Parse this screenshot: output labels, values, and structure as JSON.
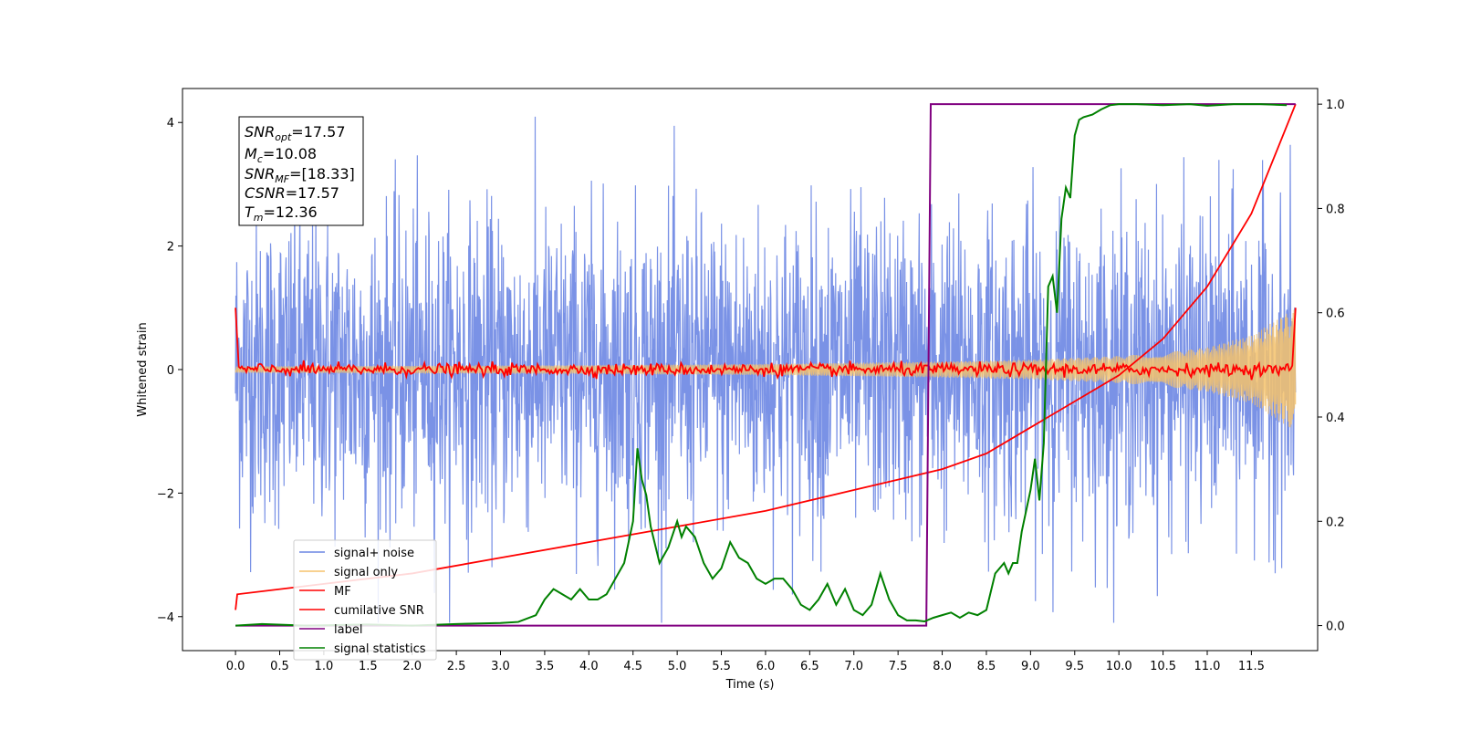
{
  "chart_data": {
    "type": "line",
    "xlabel": "Time (s)",
    "ylabel": "Whitened strain",
    "xlim": [
      -0.6,
      12.25
    ],
    "ylim_left": [
      -4.55,
      4.55
    ],
    "ylim_right": [
      -0.048,
      1.03
    ],
    "x_ticks": [
      "0.0",
      "0.5",
      "1.0",
      "1.5",
      "2.0",
      "2.5",
      "3.0",
      "3.5",
      "4.0",
      "4.5",
      "5.0",
      "5.5",
      "6.0",
      "6.5",
      "7.0",
      "7.5",
      "8.0",
      "8.5",
      "9.0",
      "9.5",
      "10.0",
      "10.5",
      "11.0",
      "11.5"
    ],
    "y_ticks_left": [
      "4",
      "2",
      "0",
      "−2",
      "−4"
    ],
    "y_ticks_right": [
      "1.0",
      "0.8",
      "0.6",
      "0.4",
      "0.2",
      "0.0"
    ],
    "grid": false,
    "legend_position": "lower-left",
    "legend": [
      "signal+ noise",
      "signal only",
      "MF",
      "cumilative SNR",
      "label",
      "signal statistics"
    ],
    "annotation": {
      "snr_opt": "=17.57",
      "mc": "=10.08",
      "snr_mf": "=[18.33]",
      "csnr": "=17.57",
      "tm": "=12.36"
    },
    "series": [
      {
        "name": "signal+ noise",
        "axis": "left",
        "color": "#6b86e3",
        "description_values": {
          "x_range": [
            0.0,
            12.0
          ],
          "envelope_min": -4.1,
          "envelope_max": 4.1,
          "mean": 0.0
        }
      },
      {
        "name": "signal only",
        "axis": "left",
        "color": "#f5c26b",
        "description_values": {
          "x": [
            0,
            2,
            4,
            6,
            8,
            9,
            10,
            10.5,
            11,
            11.5,
            12
          ],
          "amplitude": [
            0.05,
            0.06,
            0.07,
            0.09,
            0.13,
            0.16,
            0.22,
            0.27,
            0.36,
            0.55,
            1.0
          ]
        }
      },
      {
        "name": "MF",
        "axis": "left",
        "color": "#ff0000",
        "description_values": {
          "x_range": [
            0.0,
            12.0
          ],
          "baseline": 0.0,
          "start_value": 1.0,
          "end_value": 1.0,
          "noise": 0.05
        }
      },
      {
        "name": "cumilative SNR",
        "axis": "right",
        "color": "#ff0000",
        "x": [
          0.0,
          0.02,
          1,
          2,
          3,
          4,
          5,
          6,
          7,
          7.5,
          8,
          8.5,
          9,
          9.5,
          10,
          10.5,
          11,
          11.5,
          12.0
        ],
        "values": [
          0.03,
          0.06,
          0.08,
          0.1,
          0.13,
          0.16,
          0.19,
          0.22,
          0.26,
          0.28,
          0.3,
          0.33,
          0.38,
          0.43,
          0.48,
          0.55,
          0.65,
          0.79,
          1.0
        ]
      },
      {
        "name": "label",
        "axis": "right",
        "color": "#800080",
        "x": [
          0.0,
          7.82,
          7.87,
          12.0
        ],
        "values": [
          0.0,
          0.0,
          1.0,
          1.0
        ]
      },
      {
        "name": "signal statistics",
        "axis": "right",
        "color": "#008000",
        "x": [
          0.0,
          0.3,
          0.8,
          1.5,
          2.0,
          2.5,
          3.0,
          3.2,
          3.4,
          3.5,
          3.6,
          3.7,
          3.8,
          3.9,
          4.0,
          4.1,
          4.2,
          4.3,
          4.4,
          4.5,
          4.55,
          4.6,
          4.65,
          4.7,
          4.8,
          4.9,
          5.0,
          5.05,
          5.1,
          5.2,
          5.3,
          5.4,
          5.5,
          5.6,
          5.7,
          5.8,
          5.9,
          6.0,
          6.1,
          6.2,
          6.3,
          6.4,
          6.5,
          6.6,
          6.7,
          6.8,
          6.9,
          7.0,
          7.1,
          7.2,
          7.3,
          7.4,
          7.5,
          7.6,
          7.7,
          7.8,
          7.9,
          8.0,
          8.1,
          8.2,
          8.3,
          8.4,
          8.5,
          8.6,
          8.7,
          8.75,
          8.8,
          8.85,
          8.9,
          9.0,
          9.05,
          9.1,
          9.15,
          9.2,
          9.25,
          9.3,
          9.35,
          9.4,
          9.45,
          9.5,
          9.55,
          9.6,
          9.7,
          9.8,
          9.9,
          10.0,
          10.2,
          10.5,
          10.8,
          11.0,
          11.3,
          11.6,
          11.9
        ],
        "values": [
          0.0,
          0.003,
          0.0,
          0.002,
          0.0,
          0.003,
          0.005,
          0.007,
          0.02,
          0.05,
          0.07,
          0.06,
          0.05,
          0.07,
          0.05,
          0.05,
          0.06,
          0.09,
          0.12,
          0.2,
          0.34,
          0.28,
          0.25,
          0.19,
          0.12,
          0.15,
          0.2,
          0.17,
          0.19,
          0.17,
          0.12,
          0.09,
          0.11,
          0.16,
          0.13,
          0.12,
          0.09,
          0.08,
          0.09,
          0.09,
          0.07,
          0.04,
          0.03,
          0.05,
          0.08,
          0.04,
          0.07,
          0.03,
          0.02,
          0.04,
          0.1,
          0.05,
          0.02,
          0.01,
          0.01,
          0.008,
          0.015,
          0.02,
          0.025,
          0.015,
          0.025,
          0.02,
          0.03,
          0.1,
          0.12,
          0.1,
          0.12,
          0.12,
          0.18,
          0.26,
          0.32,
          0.24,
          0.35,
          0.65,
          0.67,
          0.6,
          0.78,
          0.84,
          0.82,
          0.94,
          0.97,
          0.975,
          0.98,
          0.99,
          0.998,
          1.0,
          1.0,
          0.998,
          1.0,
          0.997,
          1.0,
          1.0,
          0.998
        ]
      }
    ]
  }
}
